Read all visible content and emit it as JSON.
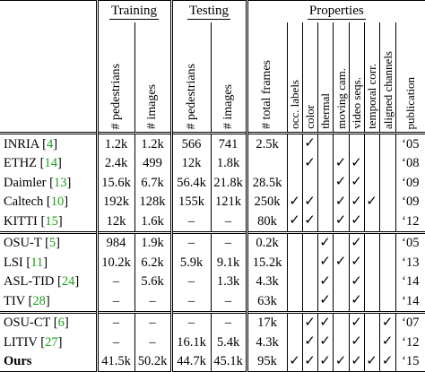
{
  "groups": {
    "training": "Training",
    "testing": "Testing",
    "properties": "Properties"
  },
  "headers": {
    "train_ped": "# pedestrians",
    "train_img": "# images",
    "test_ped": "# pedestrians",
    "test_img": "# images",
    "total_frames": "# total frames",
    "occ_labels": "occ. labels",
    "color": "color",
    "thermal": "thermal",
    "moving_cam": "moving cam.",
    "video_seqs": "video seqs.",
    "temporal_corr": "temporal corr.",
    "aligned_channels": "aligned channels",
    "publication": "publication"
  },
  "check_mark": "✓",
  "rows": [
    {
      "name": "INRIA",
      "ref": "4",
      "train_ped": "1.2k",
      "train_img": "1.2k",
      "test_ped": "566",
      "test_img": "741",
      "total": "2.5k",
      "occ": "",
      "color": "✓",
      "thermal": "",
      "moving": "",
      "video": "",
      "temporal": "",
      "aligned": "",
      "pub": "‘05"
    },
    {
      "name": "ETHZ",
      "ref": "14",
      "train_ped": "2.4k",
      "train_img": "499",
      "test_ped": "12k",
      "test_img": "1.8k",
      "total": "",
      "occ": "",
      "color": "✓",
      "thermal": "",
      "moving": "✓",
      "video": "✓",
      "temporal": "",
      "aligned": "",
      "pub": "‘08"
    },
    {
      "name": "Daimler",
      "ref": "13",
      "train_ped": "15.6k",
      "train_img": "6.7k",
      "test_ped": "56.4k",
      "test_img": "21.8k",
      "total": "28.5k",
      "occ": "",
      "color": "",
      "thermal": "",
      "moving": "✓",
      "video": "✓",
      "temporal": "",
      "aligned": "",
      "pub": "‘09"
    },
    {
      "name": "Caltech",
      "ref": "10",
      "train_ped": "192k",
      "train_img": "128k",
      "test_ped": "155k",
      "test_img": "121k",
      "total": "250k",
      "occ": "✓",
      "color": "✓",
      "thermal": "",
      "moving": "✓",
      "video": "✓",
      "temporal": "✓",
      "aligned": "",
      "pub": "‘09"
    },
    {
      "name": "KITTI",
      "ref": "15",
      "train_ped": "12k",
      "train_img": "1.6k",
      "test_ped": "–",
      "test_img": "–",
      "total": "80k",
      "occ": "✓",
      "color": "✓",
      "thermal": "",
      "moving": "✓",
      "video": "✓",
      "temporal": "",
      "aligned": "",
      "pub": "‘12"
    },
    {
      "name": "OSU-T",
      "ref": "5",
      "train_ped": "984",
      "train_img": "1.9k",
      "test_ped": "–",
      "test_img": "–",
      "total": "0.2k",
      "occ": "",
      "color": "",
      "thermal": "✓",
      "moving": "",
      "video": "✓",
      "temporal": "",
      "aligned": "",
      "pub": "‘05"
    },
    {
      "name": "LSI",
      "ref": "11",
      "train_ped": "10.2k",
      "train_img": "6.2k",
      "test_ped": "5.9k",
      "test_img": "9.1k",
      "total": "15.2k",
      "occ": "",
      "color": "",
      "thermal": "✓",
      "moving": "✓",
      "video": "✓",
      "temporal": "",
      "aligned": "",
      "pub": "‘13"
    },
    {
      "name": "ASL-TID",
      "ref": "24",
      "train_ped": "–",
      "train_img": "5.6k",
      "test_ped": "–",
      "test_img": "1.3k",
      "total": "4.3k",
      "occ": "",
      "color": "",
      "thermal": "✓",
      "moving": "",
      "video": "✓",
      "temporal": "",
      "aligned": "",
      "pub": "‘14"
    },
    {
      "name": "TIV",
      "ref": "28",
      "train_ped": "–",
      "train_img": "–",
      "test_ped": "–",
      "test_img": "–",
      "total": "63k",
      "occ": "",
      "color": "",
      "thermal": "✓",
      "moving": "",
      "video": "✓",
      "temporal": "",
      "aligned": "",
      "pub": "‘14"
    },
    {
      "name": "OSU-CT",
      "ref": "6",
      "train_ped": "–",
      "train_img": "–",
      "test_ped": "–",
      "test_img": "–",
      "total": "17k",
      "occ": "",
      "color": "✓",
      "thermal": "✓",
      "moving": "",
      "video": "✓",
      "temporal": "",
      "aligned": "✓",
      "pub": "‘07"
    },
    {
      "name": "LITIV",
      "ref": "27",
      "train_ped": "–",
      "train_img": "–",
      "test_ped": "16.1k",
      "test_img": "5.4k",
      "total": "4.3k",
      "occ": "",
      "color": "✓",
      "thermal": "✓",
      "moving": "",
      "video": "✓",
      "temporal": "",
      "aligned": "✓",
      "pub": "‘12"
    },
    {
      "name": "Ours",
      "ref": "",
      "train_ped": "41.5k",
      "train_img": "50.2k",
      "test_ped": "44.7k",
      "test_img": "45.1k",
      "total": "95k",
      "occ": "✓",
      "color": "✓",
      "thermal": "✓",
      "moving": "✓",
      "video": "✓",
      "temporal": "✓",
      "aligned": "✓",
      "pub": "‘15"
    }
  ]
}
